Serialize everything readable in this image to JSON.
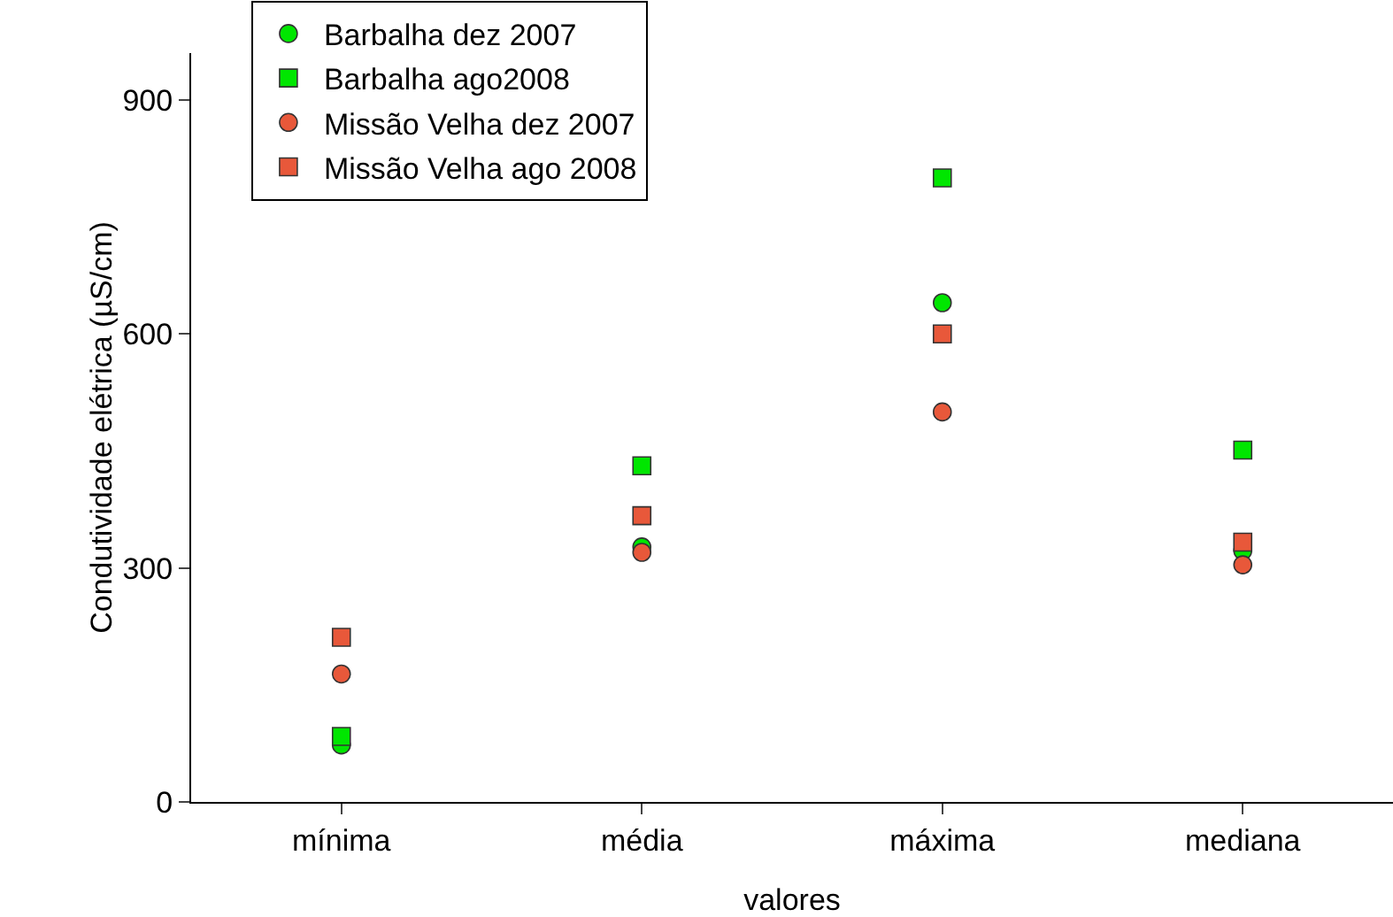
{
  "chart_data": {
    "type": "scatter",
    "xlabel": "valores",
    "ylabel": "Condutividade elétrica (µS/cm)",
    "categories": [
      "mínima",
      "média",
      "máxima",
      "mediana"
    ],
    "series": [
      {
        "name": "Barbalha dez 2007",
        "color": "#00e600",
        "marker": "circle",
        "values": [
          73,
          327,
          640,
          322
        ]
      },
      {
        "name": "Barbalha ago2008",
        "color": "#00e600",
        "marker": "square",
        "values": [
          84,
          431,
          800,
          451
        ]
      },
      {
        "name": "Missão Velha dez 2007",
        "color": "#e8583a",
        "marker": "circle",
        "values": [
          164,
          320,
          500,
          304
        ]
      },
      {
        "name": "Missão Velha ago 2008",
        "color": "#e8583a",
        "marker": "square",
        "values": [
          211,
          367,
          600,
          333
        ]
      }
    ],
    "ylim": [
      0,
      960
    ],
    "yticks": [
      0,
      300,
      600,
      900
    ],
    "grid": false,
    "legend": "top left"
  }
}
